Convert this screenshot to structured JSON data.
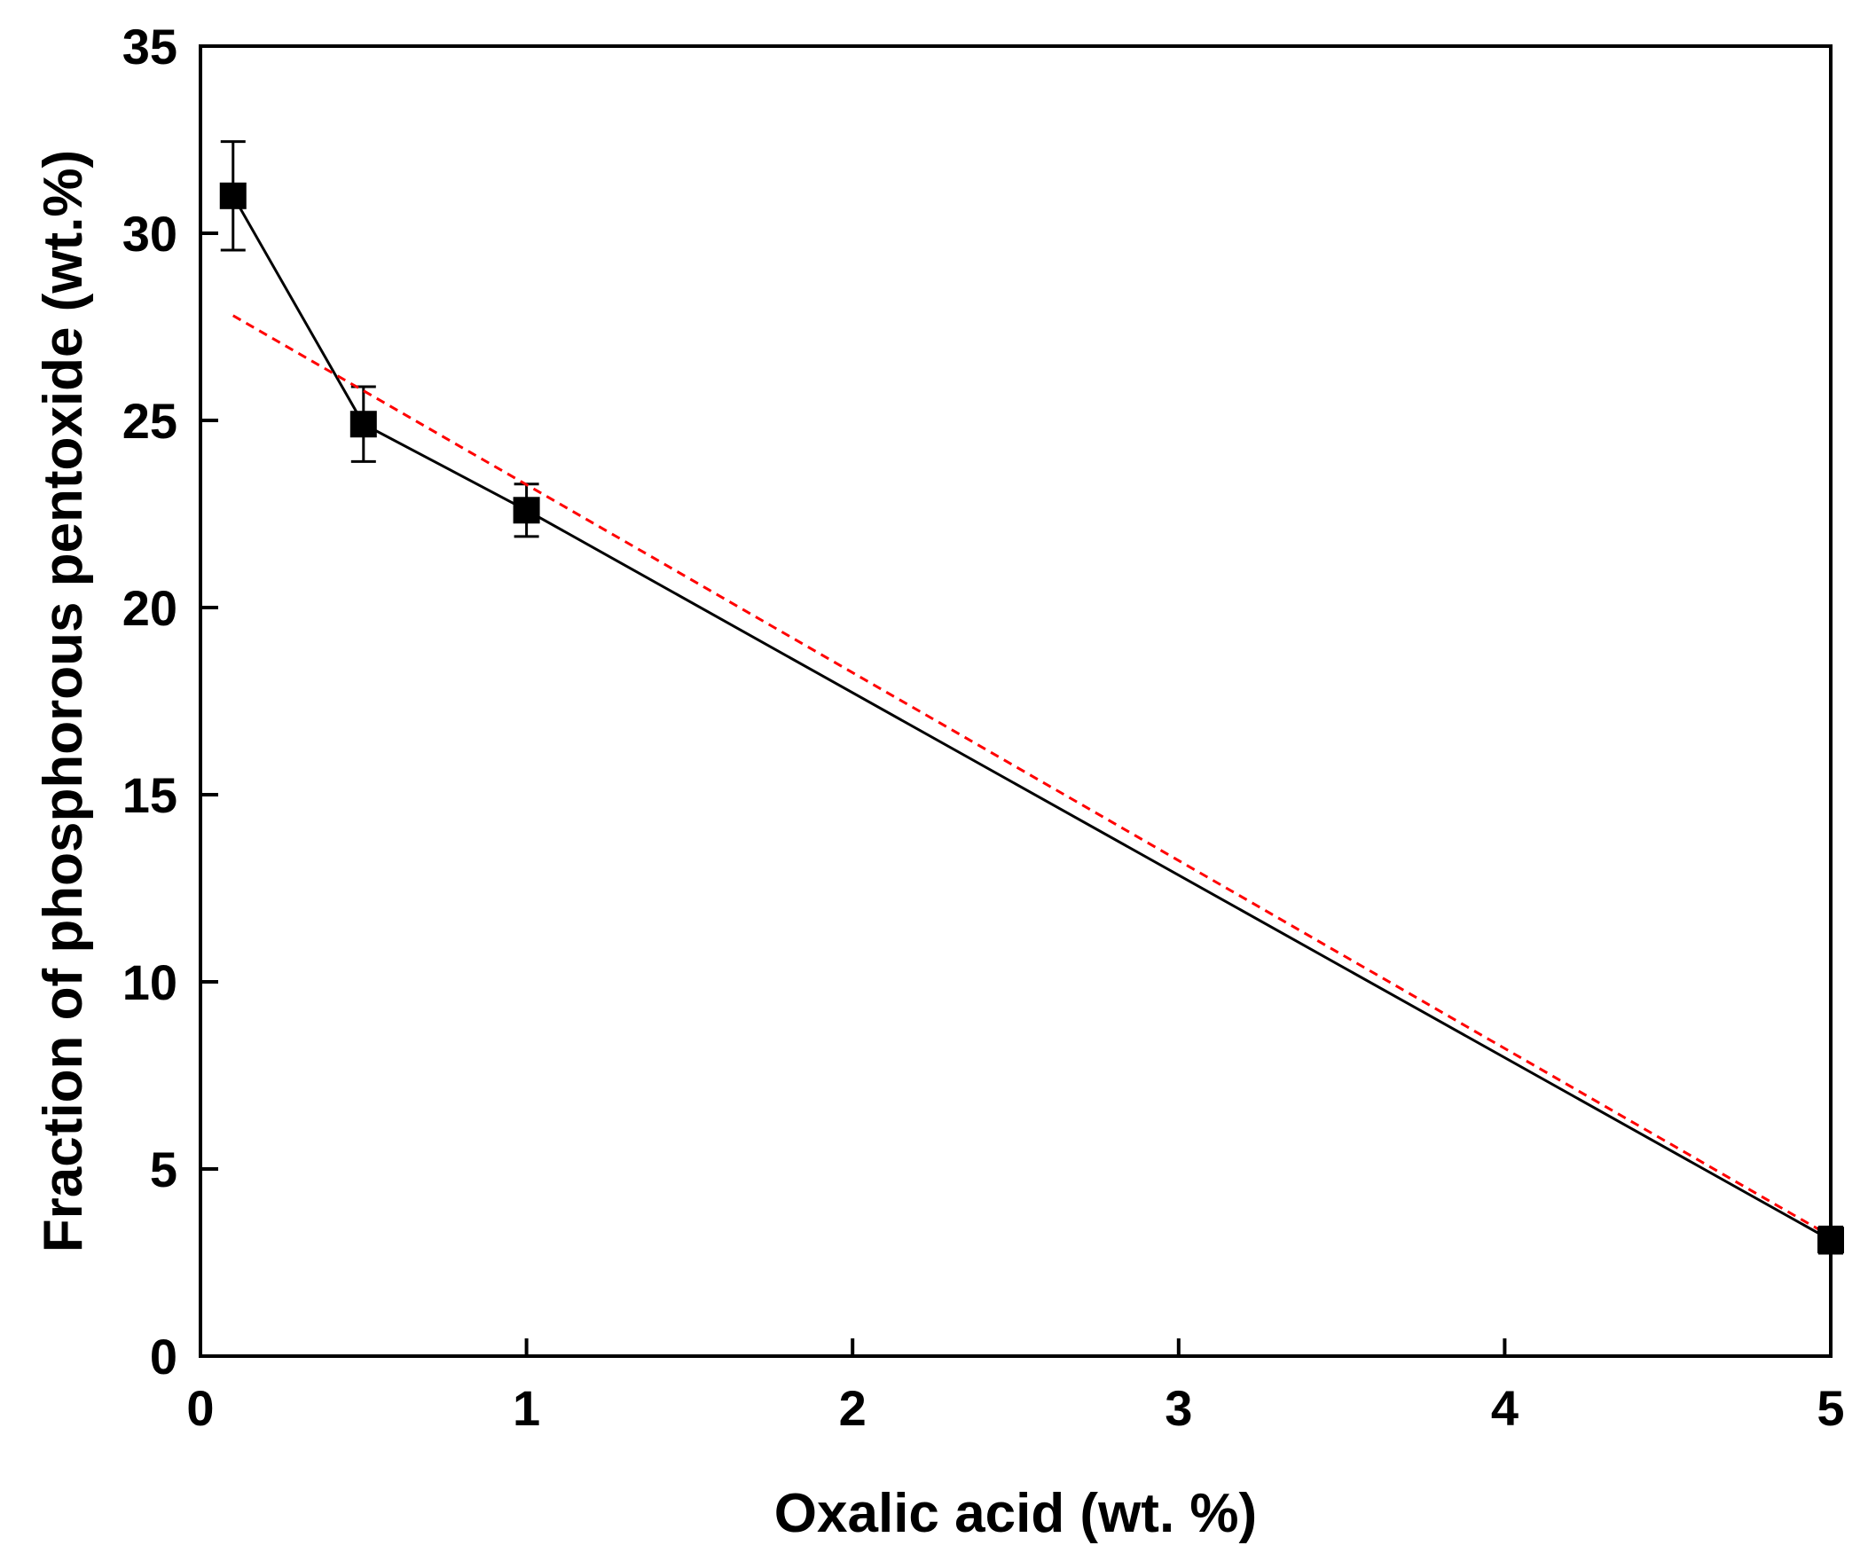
{
  "chart_data": {
    "type": "line",
    "title": "",
    "xlabel": "Oxalic acid (wt. %)",
    "ylabel": "Fraction of phosphorous pentoxide (wt.%)",
    "xlim": [
      0,
      5
    ],
    "ylim": [
      0,
      35
    ],
    "xticks": [
      0,
      1,
      2,
      3,
      4,
      5
    ],
    "yticks": [
      0,
      5,
      10,
      15,
      20,
      25,
      30,
      35
    ],
    "xtick_labels": [
      "0",
      "1",
      "2",
      "3",
      "4",
      "5"
    ],
    "ytick_labels": [
      "0",
      "5",
      "10",
      "15",
      "20",
      "25",
      "30",
      "35"
    ],
    "grid": false,
    "legend": "none",
    "series": [
      {
        "type": "line-with-markers",
        "marker": "square",
        "color": "#000000",
        "x": [
          0.1,
          0.5,
          1.0,
          5.0
        ],
        "y": [
          31.0,
          24.9,
          22.6,
          3.1
        ],
        "error": [
          1.45,
          1.0,
          0.7,
          0.35
        ]
      },
      {
        "type": "trend-line",
        "style": "dashed",
        "color": "#ff0000",
        "x": [
          0.1,
          5.0
        ],
        "y": [
          27.8,
          3.2
        ]
      }
    ]
  }
}
